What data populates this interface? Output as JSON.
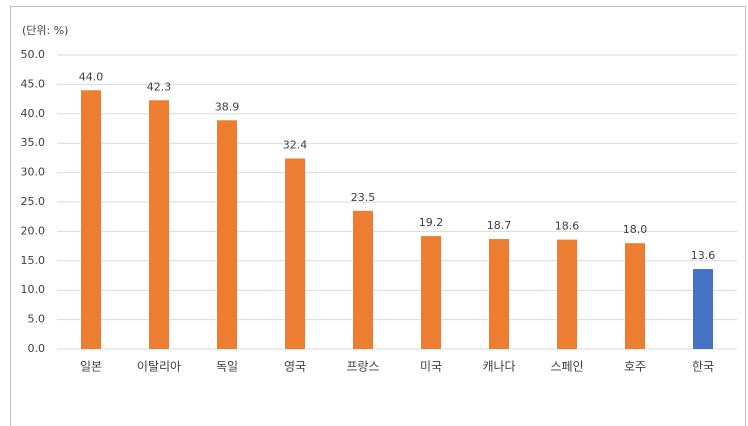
{
  "chart_data": {
    "type": "bar",
    "unit_label": "(단위: %)",
    "categories": [
      "일본",
      "이탈리아",
      "독일",
      "영국",
      "프랑스",
      "미국",
      "캐나다",
      "스페인",
      "호주",
      "한국"
    ],
    "values": [
      44.0,
      42.3,
      38.9,
      32.4,
      23.5,
      19.2,
      18.7,
      18.6,
      18.0,
      13.6
    ],
    "value_labels": [
      "44.0",
      "42.3",
      "38.9",
      "32.4",
      "23.5",
      "19.2",
      "18.7",
      "18.6",
      "18.0",
      "13.6"
    ],
    "colors": [
      "#ed7d31",
      "#ed7d31",
      "#ed7d31",
      "#ed7d31",
      "#ed7d31",
      "#ed7d31",
      "#ed7d31",
      "#ed7d31",
      "#ed7d31",
      "#4472c4"
    ],
    "ylim": [
      0,
      50
    ],
    "yticks": [
      {
        "value": 0,
        "label": "0.0"
      },
      {
        "value": 5,
        "label": "5.0"
      },
      {
        "value": 10,
        "label": "10.0"
      },
      {
        "value": 15,
        "label": "15.0"
      },
      {
        "value": 20,
        "label": "20.0"
      },
      {
        "value": 25,
        "label": "25.0"
      },
      {
        "value": 30,
        "label": "30.0"
      },
      {
        "value": 35,
        "label": "35.0"
      },
      {
        "value": 40,
        "label": "40.0"
      },
      {
        "value": 45,
        "label": "45.0"
      },
      {
        "value": 50,
        "label": "50.0"
      }
    ],
    "grid": true
  }
}
